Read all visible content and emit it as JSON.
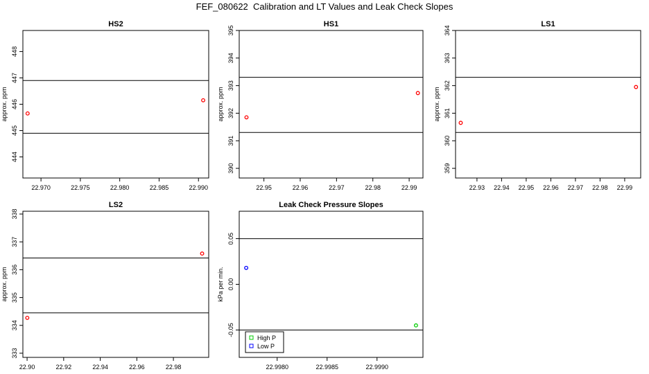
{
  "page_title": "FEF_080622  Calibration and LT Values and Leak Check Slopes",
  "chart_data": [
    {
      "id": "hs2",
      "type": "scatter",
      "title": "HS2",
      "xlabel": "",
      "ylabel": "approx. ppm",
      "xlim": [
        22.9677,
        22.9913
      ],
      "ylim": [
        443.2,
        448.8
      ],
      "xticks": [
        "22.970",
        "22.975",
        "22.980",
        "22.985",
        "22.990"
      ],
      "yticks": [
        "444",
        "445",
        "446",
        "447",
        "448"
      ],
      "hlines": [
        444.9,
        446.9
      ],
      "series": [
        {
          "color": "#ff0000",
          "marker": "circle",
          "points": [
            [
              22.9683,
              445.65
            ],
            [
              22.9906,
              446.15
            ]
          ]
        }
      ]
    },
    {
      "id": "hs1",
      "type": "scatter",
      "title": "HS1",
      "xlabel": "",
      "ylabel": "approx. ppm",
      "xlim": [
        22.9432,
        22.9938
      ],
      "ylim": [
        389.65,
        395.0
      ],
      "xticks": [
        "22.95",
        "22.96",
        "22.97",
        "22.98",
        "22.99"
      ],
      "yticks": [
        "390",
        "391",
        "392",
        "393",
        "394",
        "395"
      ],
      "hlines": [
        391.3,
        393.3
      ],
      "series": [
        {
          "color": "#ff0000",
          "marker": "circle",
          "points": [
            [
              22.9452,
              391.85
            ],
            [
              22.9924,
              392.73
            ]
          ]
        }
      ]
    },
    {
      "id": "ls1",
      "type": "scatter",
      "title": "LS1",
      "xlabel": "",
      "ylabel": "approx. ppm",
      "xlim": [
        22.9213,
        22.9965
      ],
      "ylim": [
        358.65,
        364.0
      ],
      "xticks": [
        "22.93",
        "22.94",
        "22.95",
        "22.96",
        "22.97",
        "22.98",
        "22.99"
      ],
      "yticks": [
        "359",
        "360",
        "361",
        "362",
        "363",
        "364"
      ],
      "hlines": [
        360.3,
        362.3
      ],
      "series": [
        {
          "color": "#ff0000",
          "marker": "circle",
          "points": [
            [
              22.9234,
              360.65
            ],
            [
              22.9946,
              361.95
            ]
          ]
        }
      ]
    },
    {
      "id": "ls2",
      "type": "scatter",
      "title": "LS2",
      "xlabel": "",
      "ylabel": "approx. ppm",
      "xlim": [
        22.8977,
        22.9993
      ],
      "ylim": [
        332.85,
        338.1
      ],
      "xticks": [
        "22.90",
        "22.92",
        "22.94",
        "22.96",
        "22.98"
      ],
      "yticks": [
        "333",
        "334",
        "335",
        "336",
        "337",
        "338"
      ],
      "hlines": [
        334.45,
        336.42
      ],
      "series": [
        {
          "color": "#ff0000",
          "marker": "circle",
          "points": [
            [
              22.9001,
              334.27
            ],
            [
              22.9957,
              336.58
            ]
          ]
        }
      ]
    },
    {
      "id": "leak",
      "type": "scatter",
      "title": "Leak Check Pressure Slopes",
      "xlabel": "",
      "ylabel": "kPa per min.",
      "xlim": [
        22.99762,
        22.99946
      ],
      "ylim": [
        -0.08,
        0.08
      ],
      "xticks": [
        "22.9980",
        "22.9985",
        "22.9990"
      ],
      "yticks": [
        "-0.05",
        "0.00",
        "0.05"
      ],
      "hlines": [
        -0.05,
        0.05
      ],
      "series": [
        {
          "name": "High P",
          "color": "#00cc00",
          "marker": "circle",
          "points": [
            [
              22.99939,
              -0.045
            ]
          ]
        },
        {
          "name": "Low P",
          "color": "#0000ff",
          "marker": "circle",
          "points": [
            [
              22.99769,
              0.018
            ]
          ]
        }
      ],
      "legend": {
        "placement": "bottom-left",
        "entries": [
          "High P",
          "Low P"
        ]
      }
    }
  ]
}
